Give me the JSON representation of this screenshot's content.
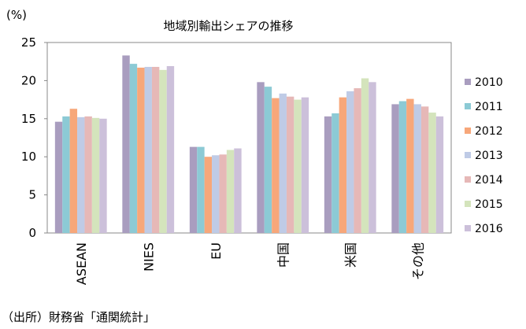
{
  "chart_data": {
    "type": "bar",
    "title": "地域別輸出シェアの推移",
    "ylabel": "(%)",
    "xlabel": "",
    "ylim": [
      0,
      25
    ],
    "yticks": [
      0,
      5,
      10,
      15,
      20,
      25
    ],
    "grid": false,
    "legend_position": "right",
    "categories": [
      "ASEAN",
      "NIES",
      "EU",
      "中国",
      "米国",
      "その他"
    ],
    "series": [
      {
        "name": "2010",
        "color": "#a99dbf",
        "values": [
          14.6,
          23.3,
          11.3,
          19.8,
          15.3,
          16.9
        ]
      },
      {
        "name": "2011",
        "color": "#8ccad5",
        "values": [
          15.3,
          22.2,
          11.3,
          19.2,
          15.7,
          17.3
        ]
      },
      {
        "name": "2012",
        "color": "#f7a77a",
        "values": [
          16.3,
          21.7,
          10.0,
          17.7,
          17.8,
          17.6
        ]
      },
      {
        "name": "2013",
        "color": "#bfcbe6",
        "values": [
          15.2,
          21.8,
          10.2,
          18.3,
          18.6,
          16.9
        ]
      },
      {
        "name": "2014",
        "color": "#e6b8b7",
        "values": [
          15.3,
          21.8,
          10.3,
          17.9,
          19.0,
          16.6
        ]
      },
      {
        "name": "2015",
        "color": "#d4e4bc",
        "values": [
          15.1,
          21.4,
          10.9,
          17.5,
          20.3,
          15.8
        ]
      },
      {
        "name": "2016",
        "color": "#ccc0da",
        "values": [
          15.0,
          21.9,
          11.1,
          17.8,
          19.8,
          15.3
        ]
      }
    ],
    "source": "（出所）財務省「通関統計」"
  }
}
